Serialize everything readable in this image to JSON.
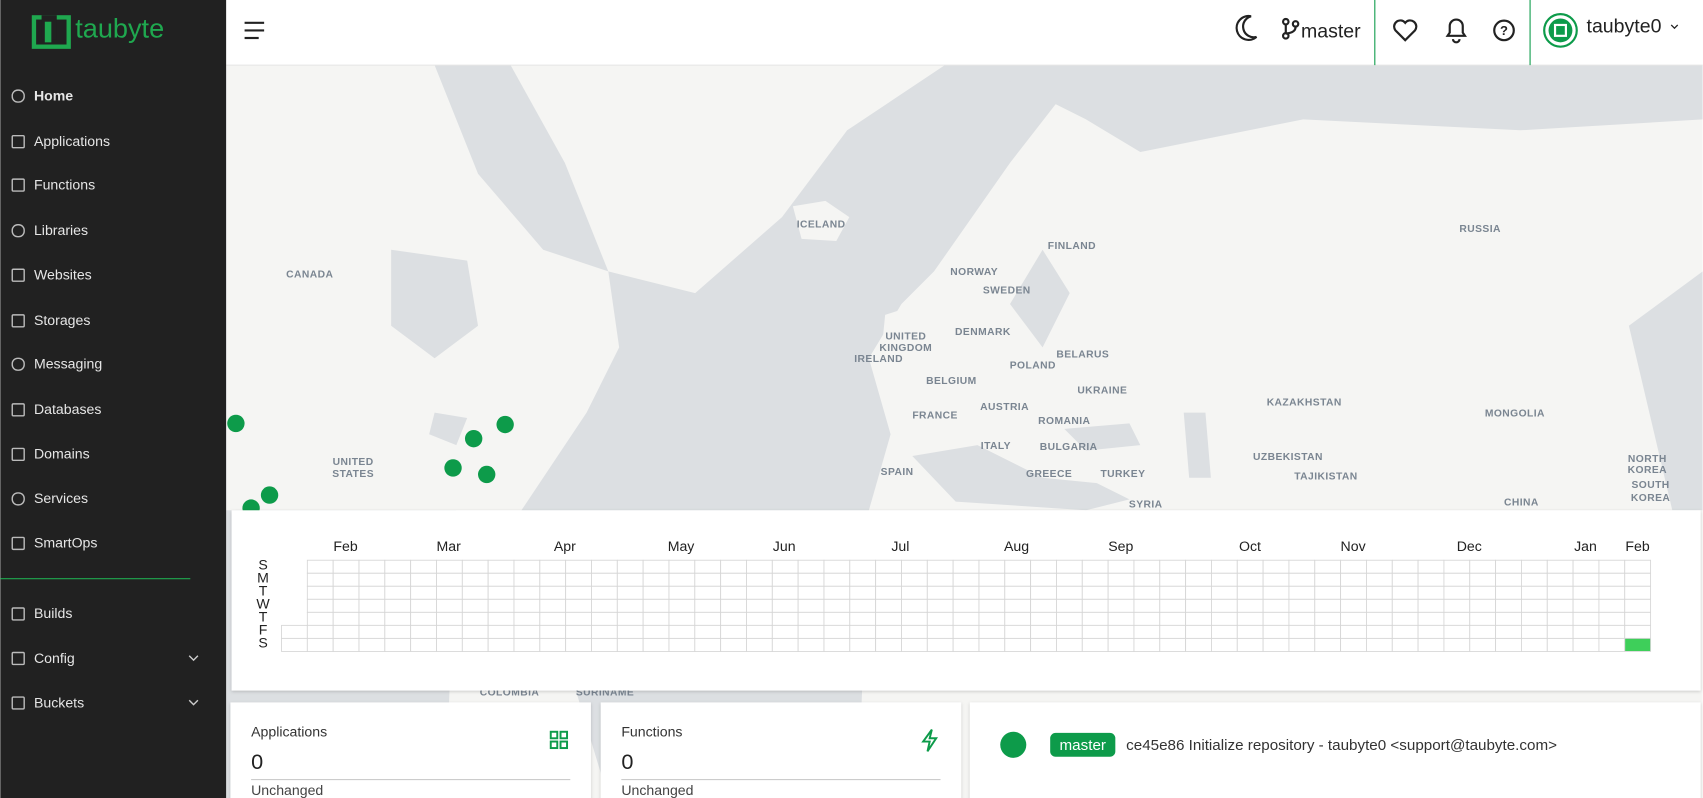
{
  "sidebar": {
    "logo": "taubyte",
    "nav": [
      "Home",
      "Applications",
      "Functions",
      "Libraries",
      "Websites",
      "Storages",
      "Messaging",
      "Databases",
      "Domains",
      "Services",
      "SmartOps"
    ],
    "secondary": [
      "Builds",
      "Config",
      "Buckets"
    ]
  },
  "header": {
    "branch": "master",
    "user": "taubyte0"
  },
  "map": {
    "labels": [
      "CANADA",
      "ICELAND",
      "RUSSIA",
      "FINLAND",
      "NORWAY",
      "SWEDEN",
      "UNITED",
      "KINGDOM",
      "IRELAND",
      "DENMARK",
      "BELARUS",
      "POLAND",
      "BELGIUM",
      "UKRAINE",
      "KAZAKHSTAN",
      "MONGOLIA",
      "FRANCE",
      "AUSTRIA",
      "ROMANIA",
      "BULGARIA",
      "ITALY",
      "UZBEKISTAN",
      "SPAIN",
      "GREECE",
      "TURKEY",
      "TAJIKISTAN",
      "NORTH",
      "KOREA",
      "SOUTH",
      "KOREA",
      "CHINA",
      "UNITED",
      "STATES",
      "SYRIA",
      "COLOMBIA",
      "SURINAME"
    ]
  },
  "calendar": {
    "months": [
      "Feb",
      "Mar",
      "Apr",
      "May",
      "Jun",
      "Jul",
      "Aug",
      "Sep",
      "Oct",
      "Nov",
      "Dec",
      "Jan",
      "Feb"
    ],
    "days": [
      "S",
      "M",
      "T",
      "W",
      "T",
      "F",
      "S"
    ]
  },
  "cards": [
    {
      "title": "Applications",
      "value": 0,
      "status": "Unchanged"
    },
    {
      "title": "Functions",
      "value": 0,
      "status": "Unchanged"
    }
  ],
  "commit": {
    "branch": "master",
    "message": "ce45e86 Initialize repository - taubyte0 <support@taubyte.com>"
  }
}
